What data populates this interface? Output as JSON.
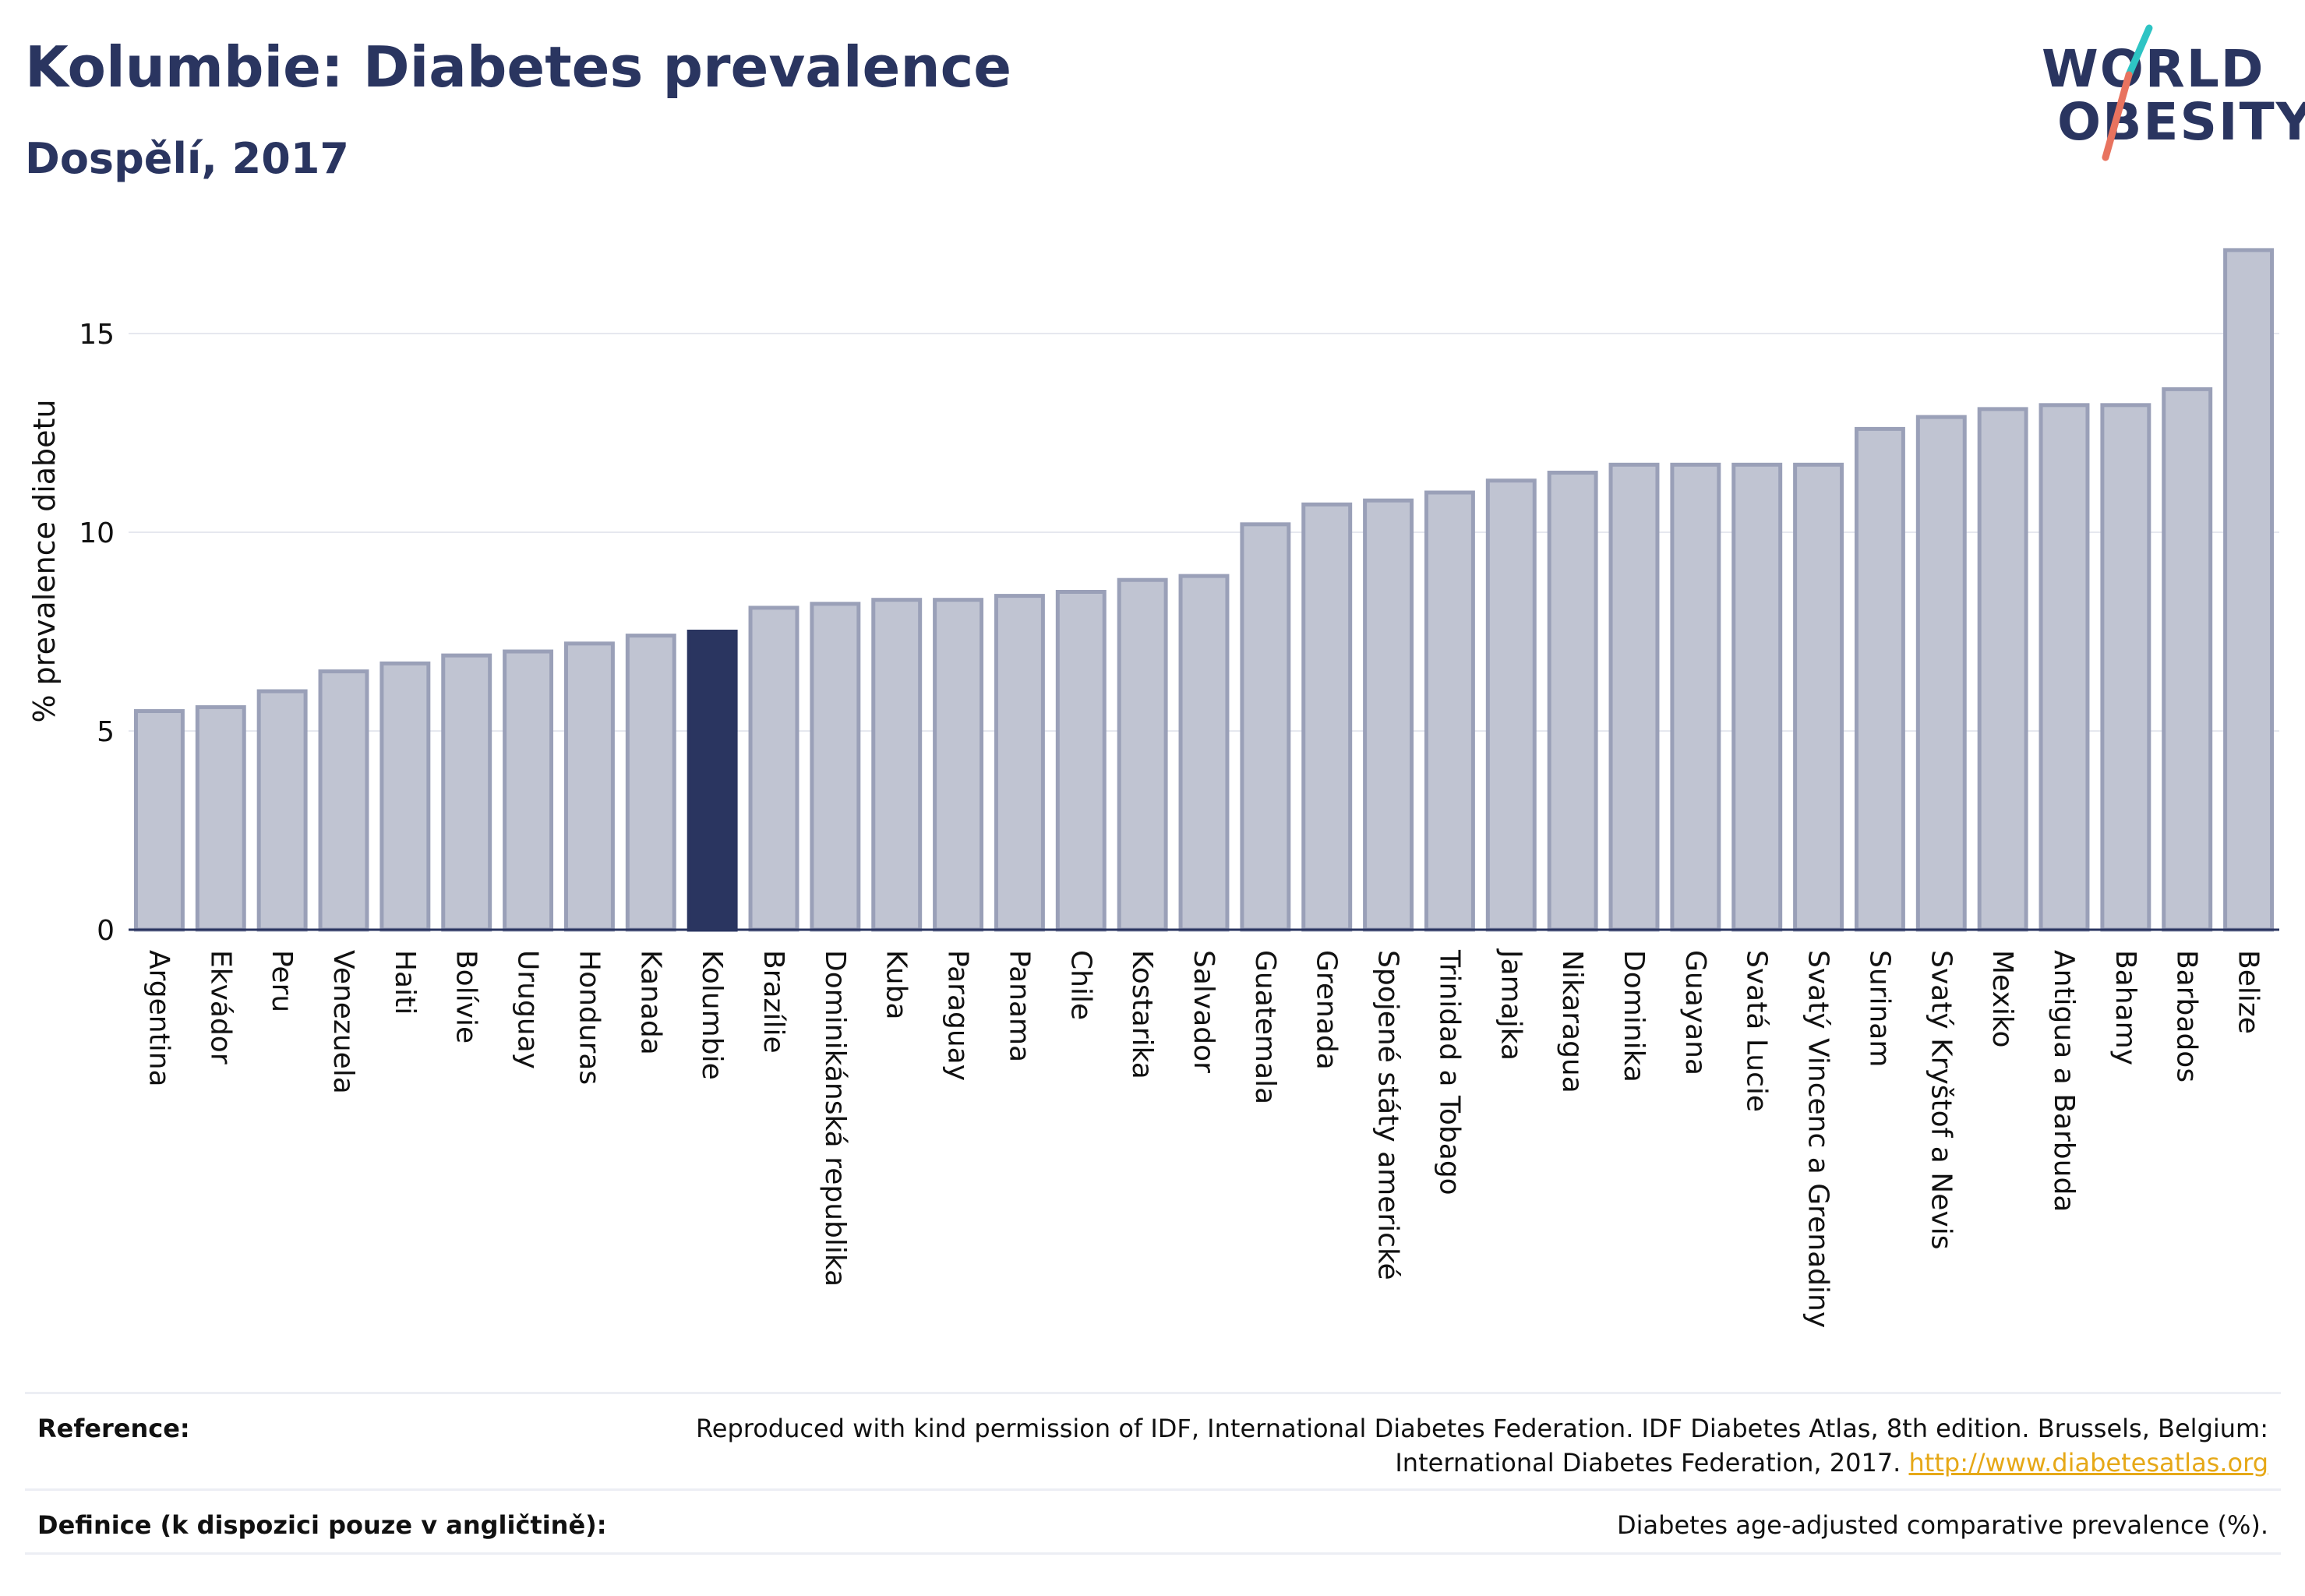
{
  "title": "Kolumbie: Diabetes prevalence",
  "subtitle": "Dospělí, 2017",
  "logo": {
    "line1": "WORLD",
    "line2": "OBESITY"
  },
  "colors": {
    "bar": "#c0c4d2",
    "bar_border": "#9aa0b8",
    "highlight": "#2a3560",
    "grid": "#e6e8ef",
    "logo_slash_top": "#2ec4c4",
    "logo_slash_bottom": "#e8735f",
    "link": "#e6a817"
  },
  "chart_data": {
    "type": "bar",
    "ylabel": "% prevalence diabetu",
    "xlabel": "",
    "ylim": [
      0,
      17.5
    ],
    "yticks": [
      0,
      5,
      10,
      15
    ],
    "grid": true,
    "highlight": "Kolumbie",
    "categories": [
      "Argentina",
      "Ekvádor",
      "Peru",
      "Venezuela",
      "Haiti",
      "Bolívie",
      "Uruguay",
      "Honduras",
      "Kanada",
      "Kolumbie",
      "Brazílie",
      "Dominikánská republika",
      "Kuba",
      "Paraguay",
      "Panama",
      "Chile",
      "Kostarika",
      "Salvador",
      "Guatemala",
      "Grenada",
      "Spojené státy americké",
      "Trinidad a Tobago",
      "Jamajka",
      "Nikaragua",
      "Dominika",
      "Guayana",
      "Svatá Lucie",
      "Svatý Vincenc a Grenadiny",
      "Surinam",
      "Svatý Kryštof a Nevis",
      "Mexiko",
      "Antigua a Barbuda",
      "Bahamy",
      "Barbados",
      "Belize"
    ],
    "values": [
      5.5,
      5.6,
      6.0,
      6.5,
      6.7,
      6.9,
      7.0,
      7.2,
      7.4,
      7.5,
      8.1,
      8.2,
      8.3,
      8.3,
      8.4,
      8.5,
      8.8,
      8.9,
      10.2,
      10.7,
      10.8,
      11.0,
      11.3,
      11.5,
      11.7,
      11.7,
      11.7,
      11.7,
      12.6,
      12.9,
      13.1,
      13.2,
      13.2,
      13.6,
      17.1
    ]
  },
  "footer": {
    "reference_label": "Reference:",
    "reference_line1": "Reproduced with kind permission of IDF, International Diabetes Federation. IDF Diabetes Atlas, 8th edition. Brussels, Belgium:",
    "reference_line2": "International Diabetes Federation, 2017.",
    "reference_link": "http://www.diabetesatlas.org",
    "definition_label": "Definice (k dispozici pouze v angličtině):",
    "definition_text": "Diabetes age-adjusted comparative prevalence (%)."
  }
}
